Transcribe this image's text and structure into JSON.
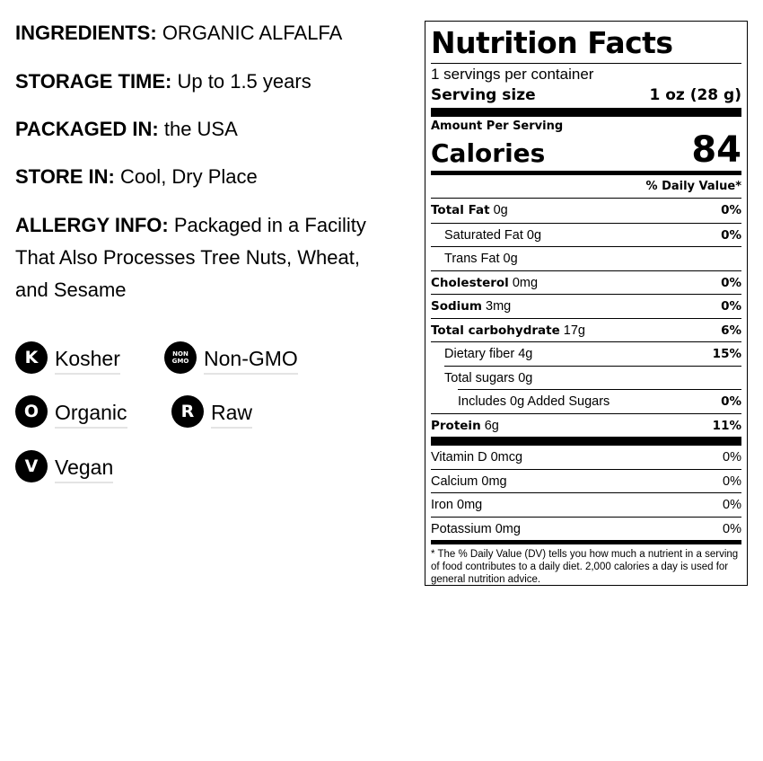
{
  "info": [
    {
      "label": "INGREDIENTS:",
      "value": "ORGANIC ALFALFA"
    },
    {
      "label": "STORAGE TIME:",
      "value": "Up to 1.5 years"
    },
    {
      "label": "PACKAGED IN:",
      "value": "the USA"
    },
    {
      "label": "STORE IN:",
      "value": "Cool, Dry Place"
    },
    {
      "label": "ALLERGY INFO:",
      "value": "Packaged in a Facility",
      "line2": "That Also Processes Tree Nuts, Wheat,",
      "line3": "and Sesame"
    }
  ],
  "badges": [
    {
      "icon": "K",
      "label": "Kosher"
    },
    {
      "icon_top": "NON",
      "icon_bottom": "GMO",
      "label": "Non-GMO"
    },
    {
      "icon": "O",
      "label": "Organic"
    },
    {
      "icon": "R",
      "label": "Raw"
    },
    {
      "icon": "V",
      "label": "Vegan"
    }
  ],
  "nutrition": {
    "title": "Nutrition Facts",
    "servings": "1 servings per container",
    "serving_size_label": "Serving size",
    "serving_size": "1 oz (28 g)",
    "amount_per_serving": "Amount Per Serving",
    "calories_label": "Calories",
    "calories": "84",
    "dv_header": "% Daily Value*",
    "rows": [
      {
        "name": "Total Fat",
        "amount": "0g",
        "dv": "0%"
      },
      {
        "name": "Saturated Fat",
        "amount": "0g",
        "dv": "0%"
      },
      {
        "name": "Trans Fat",
        "amount": "0g",
        "dv": ""
      },
      {
        "name": "Cholesterol",
        "amount": "0mg",
        "dv": "0%"
      },
      {
        "name": "Sodium",
        "amount": "3mg",
        "dv": "0%"
      },
      {
        "name": "Total carbohydrate",
        "amount": "17g",
        "dv": "6%"
      },
      {
        "name": "Dietary fiber",
        "amount": "4g",
        "dv": "15%"
      },
      {
        "name": "Total sugars",
        "amount": "0g",
        "dv": ""
      },
      {
        "name": "Includes 0g Added Sugars",
        "amount": "",
        "dv": "0%"
      },
      {
        "name": "Protein",
        "amount": "6g",
        "dv": "11%"
      }
    ],
    "vitamins": [
      {
        "name": "Vitamin D 0mcg",
        "dv": "0%"
      },
      {
        "name": "Calcium 0mg",
        "dv": "0%"
      },
      {
        "name": "Iron 0mg",
        "dv": "0%"
      },
      {
        "name": "Potassium 0mg",
        "dv": "0%"
      }
    ],
    "footnote": "* The % Daily Value (DV) tells you how much a nutrient in a serving of food contributes to a daily diet. 2,000 calories a day is used for general nutrition advice."
  }
}
